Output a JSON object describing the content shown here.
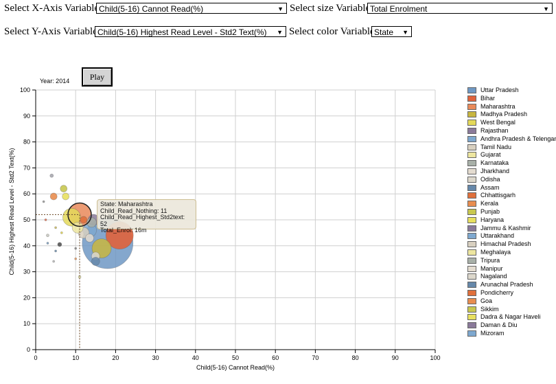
{
  "controls": {
    "x_label": "Select X-Axis Variable",
    "x_value": "Child(5-16) Cannot Read(%)",
    "size_label": "Select size Variable",
    "size_value": "Total Enrolment",
    "y_label": "Select Y-Axis Variable",
    "y_value": "Child(5-16) Highest Read Level - Std2 Text(%)",
    "color_label": "Select color Variable",
    "color_value": "State",
    "arrow": "▼"
  },
  "play_label": "Play",
  "year_label": "Year: 2014",
  "tooltip": {
    "line1": "State: Maharashtra",
    "line2": "Child_Read_Nothing: 11",
    "line3": "Child_Read_Highest_Std2text: 52",
    "line4": "Total_Enrol: 16m"
  },
  "chart_data": {
    "type": "scatter",
    "xlabel": "Child(5-16) Cannot Read(%)",
    "ylabel": "Child(5-16) Highest Read Level - Std2 Text(%)",
    "xlim": [
      0,
      100
    ],
    "ylim": [
      0,
      100
    ],
    "xticks": [
      "0",
      "10",
      "20",
      "30",
      "40",
      "50",
      "60",
      "70",
      "80",
      "90",
      "100"
    ],
    "yticks": [
      "0",
      "10",
      "20",
      "30",
      "40",
      "50",
      "60",
      "70",
      "80",
      "90",
      "100"
    ],
    "grid": true,
    "legend_position": "right",
    "highlight": {
      "x": 11,
      "y": 52
    },
    "points": [
      {
        "state": "Uttar Pradesh",
        "x": 18,
        "y": 41,
        "r": 37,
        "color": "#6f98c4",
        "opacity": 0.85
      },
      {
        "state": "Bihar",
        "x": 21,
        "y": 44,
        "r": 20,
        "color": "#e0633c",
        "opacity": 0.9
      },
      {
        "state": "Madhya Pradesh",
        "x": 16.5,
        "y": 39,
        "r": 14,
        "color": "#c8b640",
        "opacity": 0.85
      },
      {
        "state": "Maharashtra",
        "x": 11,
        "y": 52,
        "r": 17,
        "color": "#e98a5a",
        "opacity": 0.85
      },
      {
        "state": "West Bengal",
        "x": 9,
        "y": 51,
        "r": 13,
        "color": "#e4d95a",
        "opacity": 0.85
      },
      {
        "state": "Andhra Pradesh & Telengana",
        "x": 13.5,
        "y": 46,
        "r": 10,
        "color": "#7ea8cf",
        "opacity": 0.85
      },
      {
        "state": "Rajasthan",
        "x": 14.5,
        "y": 50,
        "r": 8,
        "color": "#8a7a9a",
        "opacity": 0.85
      },
      {
        "state": "Tamil Nadu",
        "x": 12,
        "y": 45,
        "r": 8,
        "color": "#d8d0c0",
        "opacity": 0.85
      },
      {
        "state": "Gujarat",
        "x": 10.5,
        "y": 47,
        "r": 8,
        "color": "#ede6a0",
        "opacity": 0.85
      },
      {
        "state": "Karnataka",
        "x": 14,
        "y": 49,
        "r": 7,
        "color": "#a8b0a8",
        "opacity": 0.85
      },
      {
        "state": "Jharkhand",
        "x": 13.5,
        "y": 43,
        "r": 6,
        "color": "#e4dcd0",
        "opacity": 0.85
      },
      {
        "state": "Odisha",
        "x": 15,
        "y": 36,
        "r": 6,
        "color": "#ddd8cc",
        "opacity": 0.85
      },
      {
        "state": "Assam",
        "x": 15,
        "y": 34,
        "r": 6,
        "color": "#6688aa",
        "opacity": 0.85
      },
      {
        "state": "Chhattisgarh",
        "x": 12,
        "y": 50,
        "r": 5,
        "color": "#e0703c",
        "opacity": 0.9
      },
      {
        "state": "Kerala",
        "x": 4.5,
        "y": 59,
        "r": 5,
        "color": "#e88d50",
        "opacity": 0.9
      },
      {
        "state": "Punjab",
        "x": 7,
        "y": 62,
        "r": 5,
        "color": "#c8c850",
        "opacity": 0.9
      },
      {
        "state": "Haryana",
        "x": 7.5,
        "y": 59,
        "r": 5,
        "color": "#e8e060",
        "opacity": 0.9
      },
      {
        "state": "Jammu & Kashmir",
        "x": 6,
        "y": 40.5,
        "r": 3,
        "color": "#555555",
        "opacity": 0.9
      },
      {
        "state": "Uttarakhand",
        "x": 4,
        "y": 67,
        "r": 2.5,
        "color": "#a8a8b0",
        "opacity": 0.9
      },
      {
        "state": "Himachal Pradesh",
        "x": 3,
        "y": 44,
        "r": 2,
        "color": "#c8c8c0",
        "opacity": 0.9
      },
      {
        "state": "Meghalaya",
        "x": 11,
        "y": 28,
        "r": 2,
        "color": "#dcdca8",
        "opacity": 0.9
      },
      {
        "state": "Tripura",
        "x": 2,
        "y": 57,
        "r": 1.5,
        "color": "#999999",
        "opacity": 0.9
      },
      {
        "state": "Manipur",
        "x": 4.5,
        "y": 34,
        "r": 1.5,
        "color": "#bbbbbb",
        "opacity": 0.9
      },
      {
        "state": "Nagaland",
        "x": 10,
        "y": 39,
        "r": 1.5,
        "color": "#888888",
        "opacity": 0.9
      },
      {
        "state": "Arunachal Pradesh",
        "x": 3,
        "y": 41,
        "r": 1.5,
        "color": "#7c9ec0",
        "opacity": 0.9
      },
      {
        "state": "Pondicherry",
        "x": 2.5,
        "y": 50,
        "r": 1.5,
        "color": "#e87050",
        "opacity": 0.9
      },
      {
        "state": "Goa",
        "x": 10,
        "y": 35,
        "r": 1.5,
        "color": "#e89a60",
        "opacity": 0.9
      },
      {
        "state": "Sikkim",
        "x": 5,
        "y": 47,
        "r": 1.5,
        "color": "#d0c060",
        "opacity": 0.9
      },
      {
        "state": "Dadra & Nagar Haveli",
        "x": 6.5,
        "y": 45,
        "r": 1.5,
        "color": "#e8d850",
        "opacity": 0.9
      },
      {
        "state": "Mizoram",
        "x": 5,
        "y": 38,
        "r": 1.5,
        "color": "#7090b0",
        "opacity": 0.9
      }
    ],
    "legend": [
      {
        "name": "Uttar Pradesh",
        "color": "#6f98c4"
      },
      {
        "name": "Bihar",
        "color": "#e0633c"
      },
      {
        "name": "Maharashtra",
        "color": "#e98a5a"
      },
      {
        "name": "Madhya Pradesh",
        "color": "#c8b640"
      },
      {
        "name": "West Bengal",
        "color": "#e4d95a"
      },
      {
        "name": "Rajasthan",
        "color": "#8a7a9a"
      },
      {
        "name": "Andhra Pradesh & Telengana",
        "color": "#7ea8cf"
      },
      {
        "name": "Tamil Nadu",
        "color": "#d8d0c0"
      },
      {
        "name": "Gujarat",
        "color": "#ede6a0"
      },
      {
        "name": "Karnataka",
        "color": "#a8b0a8"
      },
      {
        "name": "Jharkhand",
        "color": "#e4dcd0"
      },
      {
        "name": "Odisha",
        "color": "#ddd8cc"
      },
      {
        "name": "Assam",
        "color": "#6688aa"
      },
      {
        "name": "Chhattisgarh",
        "color": "#e0703c"
      },
      {
        "name": "Kerala",
        "color": "#e88d50"
      },
      {
        "name": "Punjab",
        "color": "#c8c850"
      },
      {
        "name": "Haryana",
        "color": "#e8e060"
      },
      {
        "name": "Jammu & Kashmir",
        "color": "#8a7a9a"
      },
      {
        "name": "Uttarakhand",
        "color": "#7ea8cf"
      },
      {
        "name": "Himachal Pradesh",
        "color": "#d8d0c0"
      },
      {
        "name": "Meghalaya",
        "color": "#ede6a0"
      },
      {
        "name": "Tripura",
        "color": "#a8b0a8"
      },
      {
        "name": "Manipur",
        "color": "#e4dcd0"
      },
      {
        "name": "Nagaland",
        "color": "#ddd8cc"
      },
      {
        "name": "Arunachal Pradesh",
        "color": "#6688aa"
      },
      {
        "name": "Pondicherry",
        "color": "#e0703c"
      },
      {
        "name": "Goa",
        "color": "#e88d50"
      },
      {
        "name": "Sikkim",
        "color": "#c8c850"
      },
      {
        "name": "Dadra & Nagar Haveli",
        "color": "#e8e060"
      },
      {
        "name": "Daman & Diu",
        "color": "#8a7a9a"
      },
      {
        "name": "Mizoram",
        "color": "#7ea8cf"
      }
    ]
  }
}
